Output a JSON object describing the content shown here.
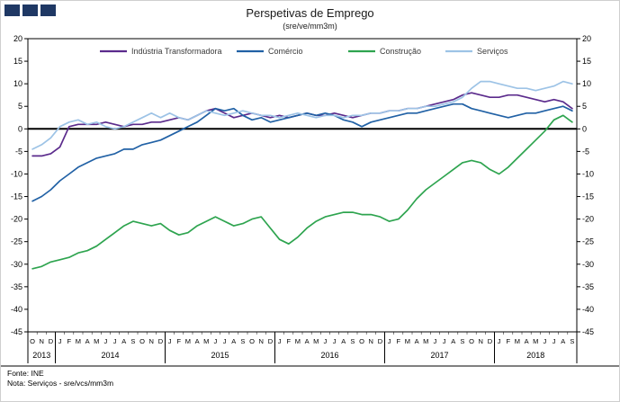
{
  "logo": {
    "color": "#1f3864",
    "square_count": 3
  },
  "title": "Perspetivas de Emprego",
  "subtitle": "(sre/ve/mm3m)",
  "footer": {
    "source": "Fonte: INE",
    "note": "Nota: Serviços - sre/vcs/mm3m"
  },
  "chart_data": {
    "type": "line",
    "title": "Perspetivas de Emprego",
    "subtitle": "(sre/ve/mm3m)",
    "ylim": [
      -45,
      20
    ],
    "ytick_step": 5,
    "grid": false,
    "legend_position": "top",
    "x_axis": {
      "years": [
        {
          "label": "2013",
          "months": [
            "O",
            "N",
            "D"
          ]
        },
        {
          "label": "2014",
          "months": [
            "J",
            "F",
            "M",
            "A",
            "M",
            "J",
            "J",
            "A",
            "S",
            "O",
            "N",
            "D"
          ]
        },
        {
          "label": "2015",
          "months": [
            "J",
            "F",
            "M",
            "A",
            "M",
            "J",
            "J",
            "A",
            "S",
            "O",
            "N",
            "D"
          ]
        },
        {
          "label": "2016",
          "months": [
            "J",
            "F",
            "M",
            "A",
            "M",
            "J",
            "J",
            "A",
            "S",
            "O",
            "N",
            "D"
          ]
        },
        {
          "label": "2017",
          "months": [
            "J",
            "F",
            "M",
            "A",
            "M",
            "J",
            "J",
            "A",
            "S",
            "O",
            "N",
            "D"
          ]
        },
        {
          "label": "2018",
          "months": [
            "J",
            "F",
            "M",
            "A",
            "M",
            "J",
            "J",
            "A",
            "S"
          ]
        }
      ]
    },
    "series": [
      {
        "name": "Indústria Transformadora",
        "color": "#5b2b8c",
        "values": [
          -6,
          -6,
          -5.5,
          -4,
          0.5,
          1,
          1,
          1,
          1.5,
          1,
          0.5,
          1,
          1,
          1.5,
          1.5,
          2,
          2.5,
          2,
          3,
          4,
          4.5,
          3.5,
          2.5,
          3,
          3.5,
          3,
          2.5,
          3,
          2.5,
          3,
          3.5,
          3,
          3,
          3.5,
          3,
          2.5,
          3,
          3.5,
          3.5,
          4,
          4,
          4.5,
          4.5,
          5,
          5.5,
          6,
          6.5,
          7.5,
          8,
          7.5,
          7,
          7,
          7.5,
          7.5,
          7,
          6.5,
          6,
          6.5,
          6,
          4.5
        ]
      },
      {
        "name": "Comércio",
        "color": "#2161a5",
        "values": [
          -16,
          -15,
          -13.5,
          -11.5,
          -10,
          -8.5,
          -7.5,
          -6.5,
          -6,
          -5.5,
          -4.5,
          -4.5,
          -3.5,
          -3,
          -2.5,
          -1.5,
          -0.5,
          0.5,
          1.5,
          3,
          4.5,
          4,
          4.5,
          3,
          2,
          2.5,
          1.5,
          2,
          2.5,
          3,
          3.5,
          3,
          3.5,
          3,
          2,
          1.5,
          0.5,
          1.5,
          2,
          2.5,
          3,
          3.5,
          3.5,
          4,
          4.5,
          5,
          5.5,
          5.5,
          4.5,
          4,
          3.5,
          3,
          2.5,
          3,
          3.5,
          3.5,
          4,
          4.5,
          5,
          4
        ]
      },
      {
        "name": "Construção",
        "color": "#2ea44f",
        "values": [
          -31,
          -30.5,
          -29.5,
          -29,
          -28.5,
          -27.5,
          -27,
          -26,
          -24.5,
          -23,
          -21.5,
          -20.5,
          -21,
          -21.5,
          -21,
          -22.5,
          -23.5,
          -23,
          -21.5,
          -20.5,
          -19.5,
          -20.5,
          -21.5,
          -21,
          -20,
          -19.5,
          -22,
          -24.5,
          -25.5,
          -24,
          -22,
          -20.5,
          -19.5,
          -19,
          -18.5,
          -18.5,
          -19,
          -19,
          -19.5,
          -20.5,
          -20,
          -18,
          -15.5,
          -13.5,
          -12,
          -10.5,
          -9,
          -7.5,
          -7,
          -7.5,
          -9,
          -10,
          -8.5,
          -6.5,
          -4.5,
          -2.5,
          -0.5,
          2,
          3,
          1.5
        ]
      },
      {
        "name": "Serviços",
        "color": "#9dc3e6",
        "values": [
          -4.5,
          -3.5,
          -2,
          0.5,
          1.5,
          2,
          1,
          1.5,
          0.5,
          0,
          0.5,
          1.5,
          2.5,
          3.5,
          2.5,
          3.5,
          2.5,
          2,
          3,
          4,
          3.5,
          3,
          3.5,
          4,
          3.5,
          3,
          3,
          2.5,
          3,
          3.5,
          3,
          2.5,
          3,
          3,
          2.5,
          3,
          3,
          3.5,
          3.5,
          4,
          4,
          4.5,
          4.5,
          5,
          5,
          5.5,
          6,
          7,
          9,
          10.5,
          10.5,
          10,
          9.5,
          9,
          9,
          8.5,
          9,
          9.5,
          10.5,
          10
        ]
      }
    ]
  }
}
